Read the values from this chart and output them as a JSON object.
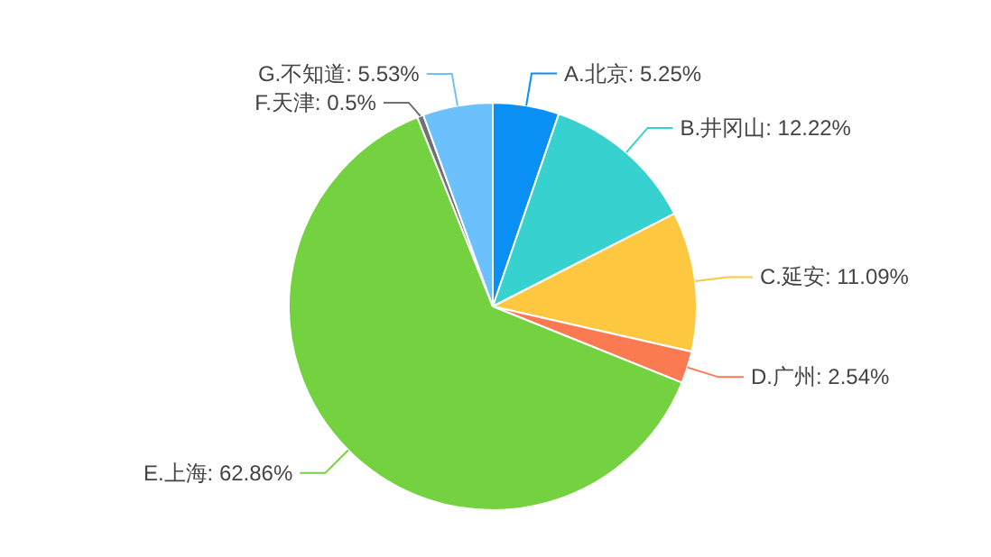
{
  "chart_data": {
    "type": "pie",
    "categories": [
      "A.北京",
      "B.井冈山",
      "C.延安",
      "D.广州",
      "E.上海",
      "F.天津",
      "G.不知道"
    ],
    "values": [
      5.25,
      12.22,
      11.09,
      2.54,
      62.86,
      0.5,
      5.53
    ],
    "colors": [
      "#0a8ff5",
      "#37d1cf",
      "#fec740",
      "#fb7a52",
      "#74d13f",
      "#6e7175",
      "#6cc0fb"
    ],
    "value_labels": [
      ": 5.25%",
      ": 12.22%",
      ": 11.09%",
      ": 2.54%",
      ": 62.86%",
      ": 0.5%",
      ": 5.53%"
    ]
  }
}
